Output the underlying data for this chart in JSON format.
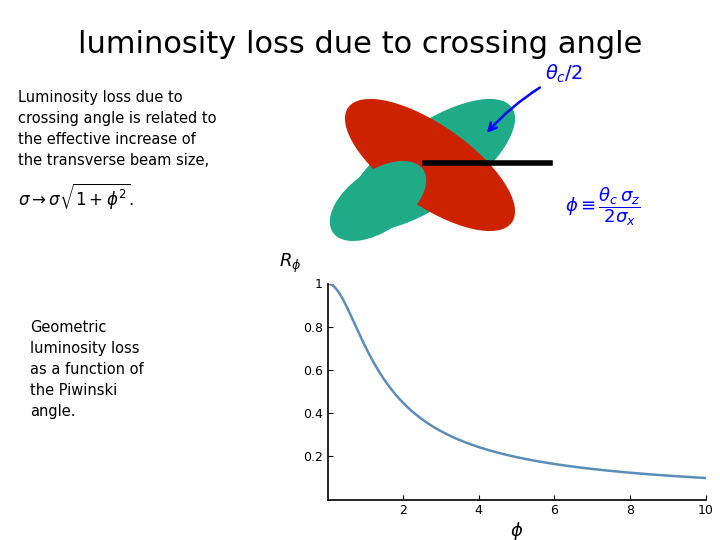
{
  "title": "luminosity loss due to crossing angle",
  "title_fontsize": 22,
  "bg_color": "#ffffff",
  "left_text_lines": [
    "Luminosity loss due to",
    "crossing angle is related to",
    "the effective increase of",
    "the transverse beam size,"
  ],
  "formula_sigma": "$\\sigma \\rightarrow \\sigma\\sqrt{1 + \\phi^2}.$",
  "piwinski_label": "Piwinski angle",
  "geo_text_lines": [
    "Geometric",
    "luminosity loss",
    "as a function of",
    "the Piwinski",
    "angle."
  ],
  "plot_xlabel": "$\\phi$",
  "plot_ylabel": "$R_\\phi$",
  "plot_xlim": [
    0,
    10
  ],
  "plot_ylim": [
    0,
    1.0
  ],
  "plot_xticks": [
    2,
    4,
    6,
    8,
    10
  ],
  "plot_yticks": [
    0.2,
    0.4,
    0.6,
    0.8,
    1.0
  ],
  "plot_yticklabels": [
    "0.2",
    "0.4",
    "0.6",
    "0.8",
    "1"
  ],
  "curve_color": "#5b8db8",
  "curve_linewidth": 1.8,
  "red_ellipse_color": "#cc2200",
  "green_ellipse_color": "#1faa88"
}
